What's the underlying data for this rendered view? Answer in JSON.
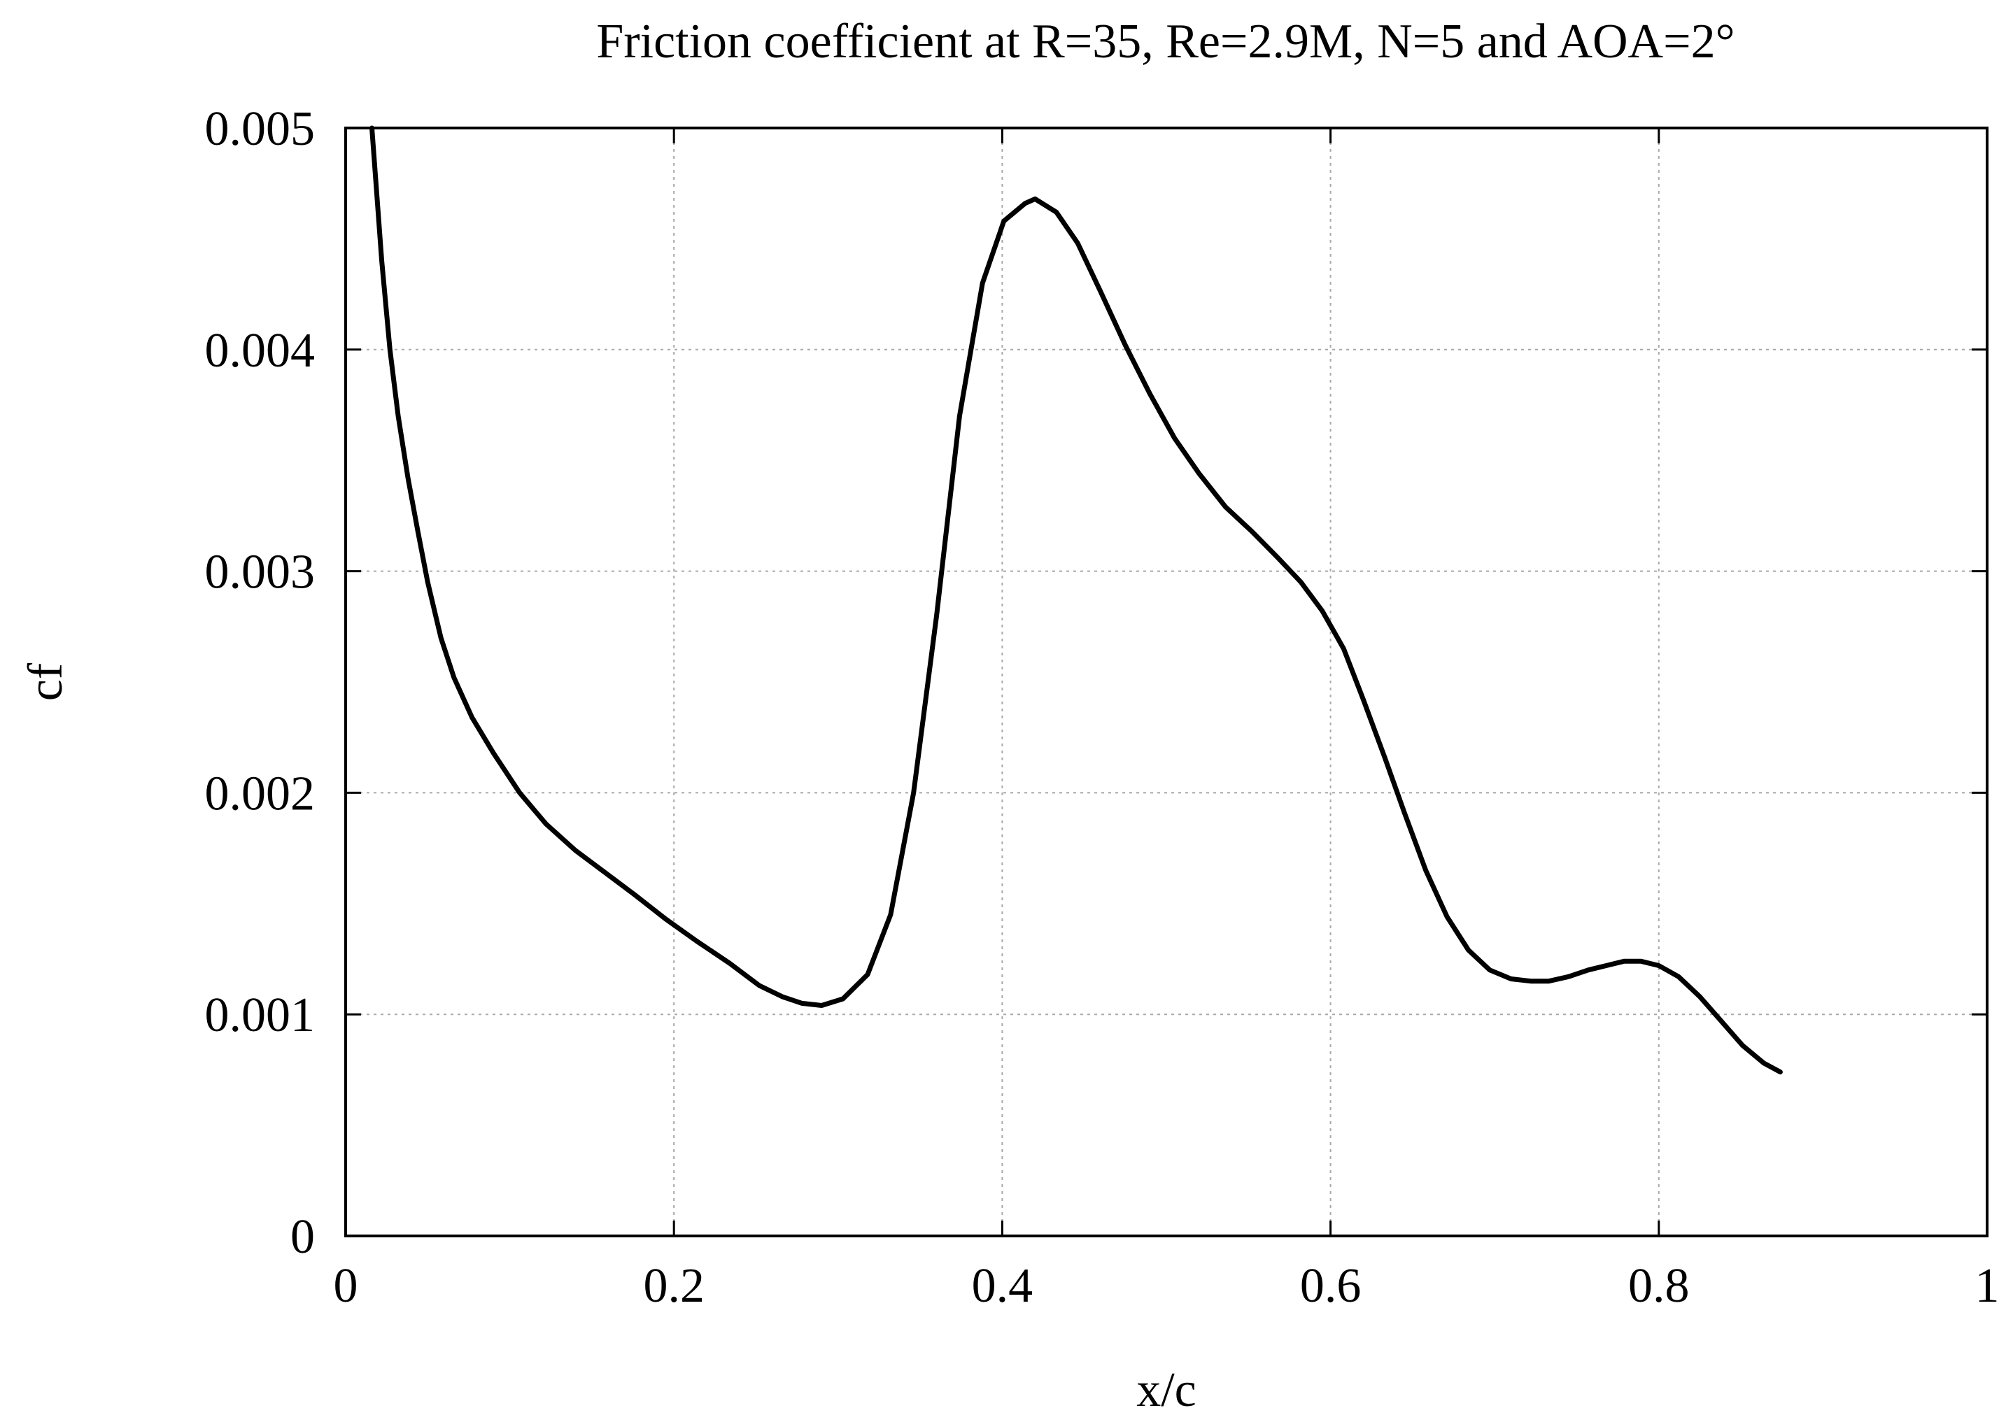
{
  "chart_data": {
    "type": "line",
    "title": "Friction coefficient at R=35, Re=2.9M, N=5 and AOA=2°",
    "xlabel": "x/c",
    "ylabel": "cf",
    "xlim": [
      0,
      1
    ],
    "ylim": [
      0,
      0.005
    ],
    "x_ticks": [
      0,
      0.2,
      0.4,
      0.6,
      0.8,
      1
    ],
    "x_tick_labels": [
      "0",
      "0.2",
      "0.4",
      "0.6",
      "0.8",
      "1"
    ],
    "y_ticks": [
      0,
      0.001,
      0.002,
      0.003,
      0.004,
      0.005
    ],
    "y_tick_labels": [
      "0",
      "0.001",
      "0.002",
      "0.003",
      "0.004",
      "0.005"
    ],
    "grid": true,
    "series": [
      {
        "color": "#000000",
        "x": [
          0.016,
          0.022,
          0.027,
          0.032,
          0.038,
          0.044,
          0.05,
          0.058,
          0.066,
          0.077,
          0.09,
          0.106,
          0.122,
          0.14,
          0.158,
          0.176,
          0.195,
          0.214,
          0.234,
          0.252,
          0.266,
          0.278,
          0.29,
          0.303,
          0.318,
          0.332,
          0.346,
          0.36,
          0.374,
          0.388,
          0.401,
          0.414,
          0.42,
          0.433,
          0.446,
          0.46,
          0.475,
          0.49,
          0.505,
          0.52,
          0.536,
          0.552,
          0.568,
          0.582,
          0.595,
          0.608,
          0.62,
          0.633,
          0.645,
          0.658,
          0.671,
          0.684,
          0.697,
          0.71,
          0.722,
          0.733,
          0.745,
          0.757,
          0.768,
          0.779,
          0.789,
          0.8,
          0.812,
          0.825,
          0.838,
          0.851,
          0.864,
          0.874
        ],
        "y": [
          0.005,
          0.0044,
          0.004,
          0.0037,
          0.00342,
          0.00318,
          0.00295,
          0.0027,
          0.00252,
          0.00234,
          0.00218,
          0.002,
          0.00186,
          0.00174,
          0.00164,
          0.00154,
          0.00143,
          0.00133,
          0.00123,
          0.00113,
          0.00108,
          0.00105,
          0.00104,
          0.00107,
          0.00118,
          0.00145,
          0.002,
          0.0028,
          0.0037,
          0.0043,
          0.00458,
          0.00466,
          0.00468,
          0.00462,
          0.00448,
          0.00426,
          0.00402,
          0.0038,
          0.0036,
          0.00344,
          0.00329,
          0.00318,
          0.00306,
          0.00295,
          0.00282,
          0.00265,
          0.00242,
          0.00216,
          0.00191,
          0.00165,
          0.00144,
          0.00129,
          0.0012,
          0.00116,
          0.00115,
          0.00115,
          0.00117,
          0.0012,
          0.00122,
          0.00124,
          0.00124,
          0.00122,
          0.00117,
          0.00108,
          0.00097,
          0.00086,
          0.00078,
          0.00074
        ]
      }
    ]
  }
}
